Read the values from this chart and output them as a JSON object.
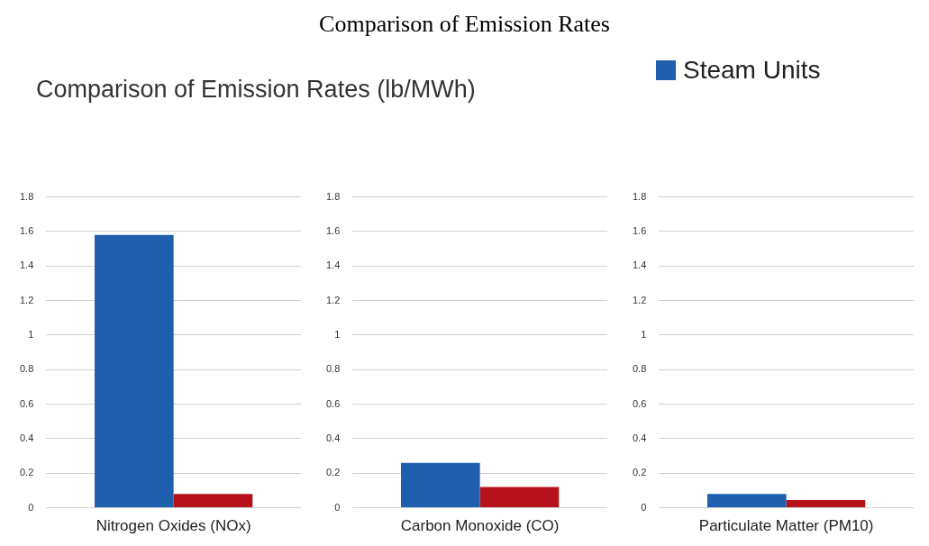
{
  "chart_data": [
    {
      "type": "bar",
      "subtitle": "Comparison of Emission Rates (lb/MWh)",
      "legend": "top right",
      "grid": "y",
      "categories": [
        "Nitrogen Oxides (NOx)"
      ],
      "ylim": [
        0,
        1.8
      ],
      "yticks": [
        0,
        0.2,
        0.4,
        0.6,
        0.8,
        1,
        1.2,
        1.4,
        1.6,
        1.8
      ],
      "series": [
        {
          "name": "Steam Units",
          "color": "#1f5fae",
          "values": [
            1.58
          ]
        },
        {
          "color": "#b5121b",
          "values": [
            0.08
          ]
        }
      ]
    },
    {
      "type": "bar",
      "title": "Comparison of Emission Rates",
      "grid": "y",
      "categories": [
        "Carbon Monoxide (CO)"
      ],
      "ylim": [
        0,
        1.8
      ],
      "yticks": [
        0,
        0.2,
        0.4,
        0.6,
        0.8,
        1,
        1.2,
        1.4,
        1.6,
        1.8
      ],
      "series": [
        {
          "name": "Steam Units",
          "color": "#1f5fae",
          "values": [
            0.26
          ]
        },
        {
          "color": "#b5121b",
          "values": [
            0.12
          ]
        }
      ]
    },
    {
      "type": "bar",
      "grid": "y",
      "categories": [
        "Particulate Matter (PM10)"
      ],
      "ylim": [
        0,
        1.8
      ],
      "yticks": [
        0,
        0.2,
        0.4,
        0.6,
        0.8,
        1,
        1.2,
        1.4,
        1.6,
        1.8
      ],
      "series": [
        {
          "name": "Steam Units",
          "color": "#1f5fae",
          "values": [
            0.08
          ]
        },
        {
          "color": "#b5121b",
          "values": [
            0.045
          ]
        }
      ]
    }
  ]
}
